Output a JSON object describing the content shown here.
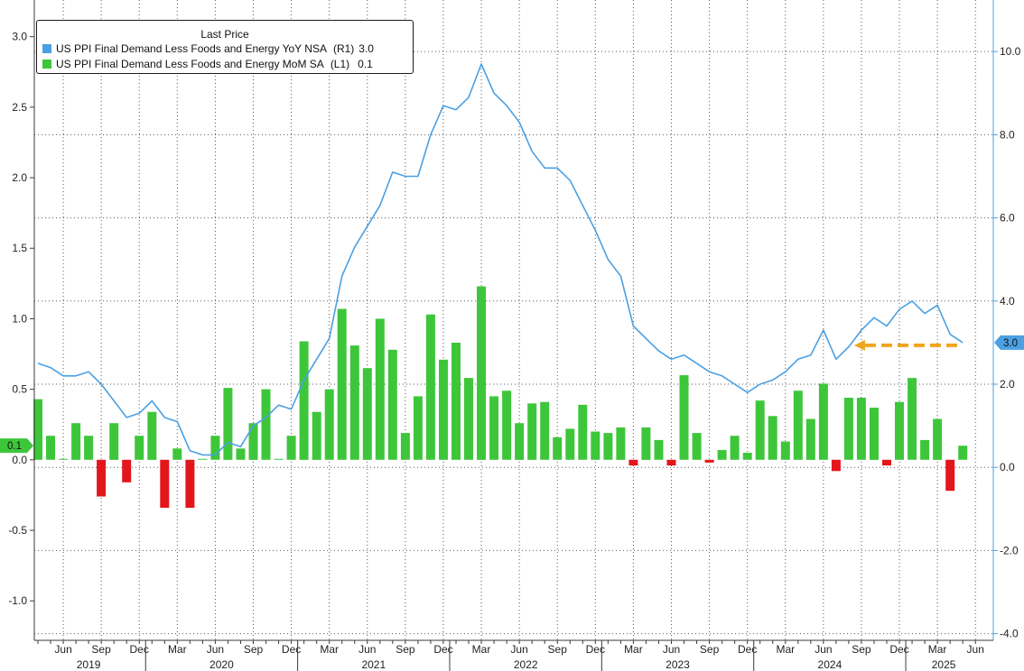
{
  "chart_data": {
    "type": "bar",
    "legend_title": "Last Price",
    "legend_position": "top-left",
    "grid": true,
    "x": [
      "2019-04",
      "2019-05",
      "2019-06",
      "2019-07",
      "2019-08",
      "2019-09",
      "2019-10",
      "2019-11",
      "2019-12",
      "2020-01",
      "2020-02",
      "2020-03",
      "2020-04",
      "2020-05",
      "2020-06",
      "2020-07",
      "2020-08",
      "2020-09",
      "2020-10",
      "2020-11",
      "2020-12",
      "2021-01",
      "2021-02",
      "2021-03",
      "2021-04",
      "2021-05",
      "2021-06",
      "2021-07",
      "2021-08",
      "2021-09",
      "2021-10",
      "2021-11",
      "2021-12",
      "2022-01",
      "2022-02",
      "2022-03",
      "2022-04",
      "2022-05",
      "2022-06",
      "2022-07",
      "2022-08",
      "2022-09",
      "2022-10",
      "2022-11",
      "2022-12",
      "2023-01",
      "2023-02",
      "2023-03",
      "2023-04",
      "2023-05",
      "2023-06",
      "2023-07",
      "2023-08",
      "2023-09",
      "2023-10",
      "2023-11",
      "2023-12",
      "2024-01",
      "2024-02",
      "2024-03",
      "2024-04",
      "2024-05",
      "2024-06",
      "2024-07",
      "2024-08",
      "2024-09",
      "2024-10",
      "2024-11",
      "2024-12",
      "2025-01",
      "2025-02",
      "2025-03",
      "2025-04",
      "2025-05"
    ],
    "x_ticks": [
      {
        "date": "2019-06",
        "label": "Jun"
      },
      {
        "date": "2019-09",
        "label": "Sep"
      },
      {
        "date": "2019-12",
        "label": "Dec"
      },
      {
        "date": "2020-03",
        "label": "Mar"
      },
      {
        "date": "2020-06",
        "label": "Jun"
      },
      {
        "date": "2020-09",
        "label": "Sep"
      },
      {
        "date": "2020-12",
        "label": "Dec"
      },
      {
        "date": "2021-03",
        "label": "Mar"
      },
      {
        "date": "2021-06",
        "label": "Jun"
      },
      {
        "date": "2021-09",
        "label": "Sep"
      },
      {
        "date": "2021-12",
        "label": "Dec"
      },
      {
        "date": "2022-03",
        "label": "Mar"
      },
      {
        "date": "2022-06",
        "label": "Jun"
      },
      {
        "date": "2022-09",
        "label": "Sep"
      },
      {
        "date": "2022-12",
        "label": "Dec"
      },
      {
        "date": "2023-03",
        "label": "Mar"
      },
      {
        "date": "2023-06",
        "label": "Jun"
      },
      {
        "date": "2023-09",
        "label": "Sep"
      },
      {
        "date": "2023-12",
        "label": "Dec"
      },
      {
        "date": "2024-03",
        "label": "Mar"
      },
      {
        "date": "2024-06",
        "label": "Jun"
      },
      {
        "date": "2024-09",
        "label": "Sep"
      },
      {
        "date": "2024-12",
        "label": "Dec"
      },
      {
        "date": "2025-03",
        "label": "Mar"
      },
      {
        "date": "2025-06",
        "label": "Jun"
      }
    ],
    "years": [
      "2019",
      "2020",
      "2021",
      "2022",
      "2023",
      "2024",
      "2025"
    ],
    "left_axis": {
      "ylim": [
        -1.28,
        3.26
      ],
      "ticks": [
        {
          "value": 3.0,
          "label": "3.0"
        },
        {
          "value": 2.5,
          "label": "2.5"
        },
        {
          "value": 2.0,
          "label": "2.0"
        },
        {
          "value": 1.5,
          "label": "1.5"
        },
        {
          "value": 1.0,
          "label": "1.0"
        },
        {
          "value": 0.5,
          "label": "0.5"
        },
        {
          "value": 0.0,
          "label": "0.0"
        },
        {
          "value": -0.5,
          "label": "-0.5"
        },
        {
          "value": -1.0,
          "label": "-1.0"
        }
      ]
    },
    "right_axis": {
      "ylim": [
        -4.16,
        11.24
      ],
      "ticks": [
        {
          "value": 10.0,
          "label": "10.0"
        },
        {
          "value": 8.0,
          "label": "8.0"
        },
        {
          "value": 6.0,
          "label": "6.0"
        },
        {
          "value": 4.0,
          "label": "4.0"
        },
        {
          "value": 2.0,
          "label": "2.0"
        },
        {
          "value": 0.0,
          "label": "0.0"
        },
        {
          "value": -2.0,
          "label": "-2.0"
        },
        {
          "value": -4.0,
          "label": "-4.0"
        }
      ]
    },
    "series": [
      {
        "name": "US PPI Final Demand Less Foods and Energy YoY NSA",
        "axis_label": "(R1)",
        "last": "3.0",
        "type": "line",
        "color": "#4aa0e3",
        "values": [
          2.5,
          2.4,
          2.2,
          2.2,
          2.3,
          2.0,
          1.6,
          1.2,
          1.3,
          1.6,
          1.2,
          1.1,
          0.4,
          0.3,
          0.3,
          0.6,
          0.5,
          1.0,
          1.2,
          1.5,
          1.4,
          2.1,
          2.6,
          3.1,
          4.6,
          5.3,
          5.8,
          6.3,
          7.1,
          7.0,
          7.0,
          8.0,
          8.7,
          8.6,
          8.9,
          9.7,
          9.0,
          8.7,
          8.3,
          7.6,
          7.2,
          7.2,
          6.9,
          6.3,
          5.7,
          5.0,
          4.6,
          3.4,
          3.1,
          2.8,
          2.6,
          2.7,
          2.5,
          2.3,
          2.2,
          2.0,
          1.8,
          2.0,
          2.1,
          2.3,
          2.6,
          2.7,
          3.3,
          2.6,
          2.9,
          3.3,
          3.6,
          3.4,
          3.8,
          4.0,
          3.7,
          3.9,
          3.2,
          3.0
        ]
      },
      {
        "name": "US PPI Final Demand Less Foods and Energy MoM SA",
        "axis_label": "(L1)",
        "last": "0.1",
        "type": "bar",
        "color": "#3ec63b",
        "negative_color": "#e3161b",
        "values": [
          0.43,
          0.17,
          0.0,
          0.26,
          0.17,
          -0.26,
          0.26,
          -0.16,
          0.17,
          0.34,
          -0.34,
          0.08,
          -0.34,
          0.0,
          0.17,
          0.51,
          0.08,
          0.26,
          0.5,
          0.0,
          0.17,
          0.84,
          0.34,
          0.5,
          1.07,
          0.81,
          0.65,
          1.0,
          0.78,
          0.19,
          0.45,
          1.03,
          0.71,
          0.83,
          0.58,
          1.23,
          0.45,
          0.49,
          0.26,
          0.4,
          0.41,
          0.16,
          0.22,
          0.39,
          0.2,
          0.19,
          0.23,
          -0.04,
          0.23,
          0.14,
          -0.04,
          0.6,
          0.19,
          -0.02,
          0.07,
          0.17,
          0.05,
          0.42,
          0.31,
          0.13,
          0.49,
          0.29,
          0.54,
          -0.08,
          0.44,
          0.44,
          0.37,
          -0.04,
          0.41,
          0.58,
          0.14,
          0.29,
          -0.22,
          0.1
        ]
      }
    ],
    "annotation_arrow_color": "#f0a51f"
  }
}
